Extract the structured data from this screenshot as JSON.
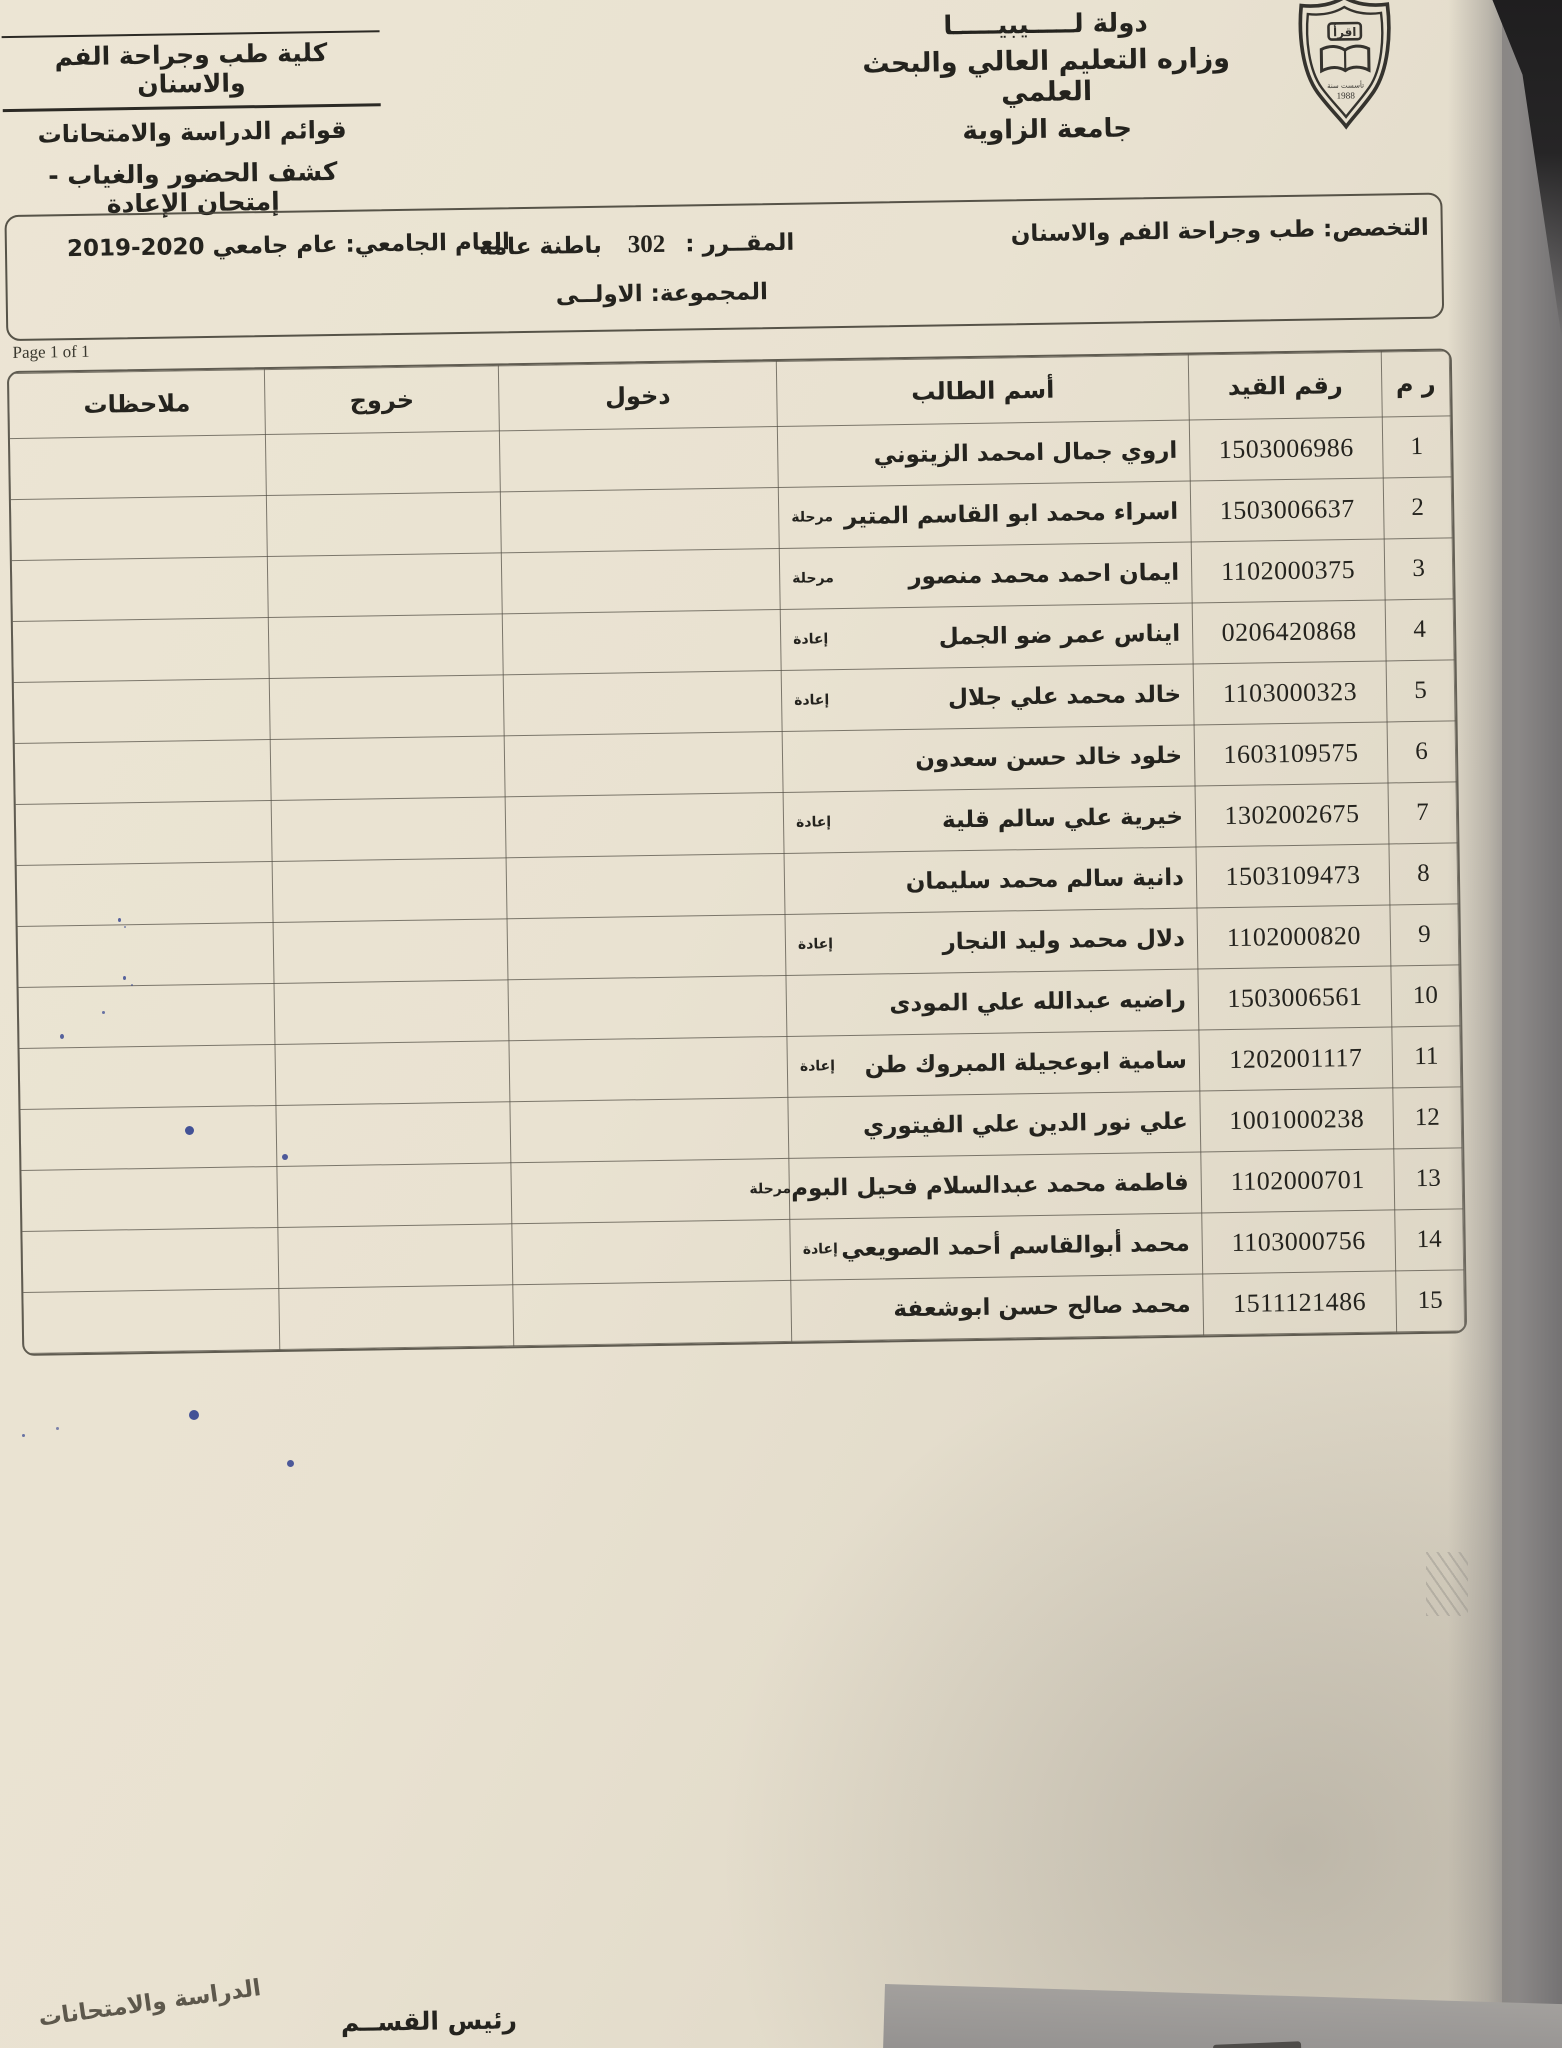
{
  "colors": {
    "bg": "#737172",
    "paper": "#e9e2d1",
    "ink": "#24231e",
    "line": "#56534a",
    "blue": "#31418f"
  },
  "header": {
    "ministry": {
      "state_line": "دولة لـــــيبيـــــا",
      "ministry_line": "وزاره التعليم العالي والبحث العلمي",
      "university_line": "جامعة الزاوية"
    },
    "logo": {
      "motto": "اقرأ",
      "founded_label": "تأسست سنة",
      "founded_year": "1988"
    },
    "faculty": {
      "faculty_line": "كلية طب وجراحة الفم والاسنان",
      "lists_line": "قوائم الدراسة والامتحانات",
      "sheet_line": "كشف الحضور والغياب - إمتحان الإعادة"
    }
  },
  "info_box": {
    "specialization": "التخصص: طب وجراحة الفم والاسنان",
    "course_label": "المقــرر :",
    "course_code": "302",
    "course_name": "باطنة عامة",
    "year_label": "العام الجامعي:",
    "year_value": "عام جامعي 2020-2019",
    "group": "المجموعة: الاولــى"
  },
  "page_indicator": "Page 1 of 1",
  "table": {
    "headers": {
      "no": "ر م",
      "id": "رقم القيد",
      "name": "أسم الطالب",
      "entry": "دخول",
      "exit": "خروج",
      "notes": "ملاحظات"
    },
    "rows": [
      {
        "no": "1",
        "id": "1503006986",
        "name": "اروي جمال امحمد الزيتوني",
        "tag": ""
      },
      {
        "no": "2",
        "id": "1503006637",
        "name": "اسراء محمد ابو القاسم المتير",
        "tag": "مرحلة"
      },
      {
        "no": "3",
        "id": "1102000375",
        "name": "ايمان احمد محمد منصور",
        "tag": "مرحلة"
      },
      {
        "no": "4",
        "id": "0206420868",
        "name": "ايناس عمر ضو الجمل",
        "tag": "إعادة"
      },
      {
        "no": "5",
        "id": "1103000323",
        "name": "خالد محمد علي جلال",
        "tag": "إعادة"
      },
      {
        "no": "6",
        "id": "1603109575",
        "name": "خلود خالد حسن سعدون",
        "tag": ""
      },
      {
        "no": "7",
        "id": "1302002675",
        "name": "خيرية علي سالم قلية",
        "tag": "إعادة"
      },
      {
        "no": "8",
        "id": "1503109473",
        "name": "دانية سالم محمد سليمان",
        "tag": ""
      },
      {
        "no": "9",
        "id": "1102000820",
        "name": "دلال محمد وليد النجار",
        "tag": "إعادة"
      },
      {
        "no": "10",
        "id": "1503006561",
        "name": "راضيه عبدالله علي المودى",
        "tag": ""
      },
      {
        "no": "11",
        "id": "1202001117",
        "name": "سامية ابوعجيلة المبروك طن",
        "tag": "إعادة"
      },
      {
        "no": "12",
        "id": "1001000238",
        "name": "علي نور الدين علي الفيتوري",
        "tag": ""
      },
      {
        "no": "13",
        "id": "1102000701",
        "name": "فاطمة محمد عبدالسلام فحيل البوم",
        "tag": "مرحلة"
      },
      {
        "no": "14",
        "id": "1103000756",
        "name": "محمد أبوالقاسم أحمد الصويعي",
        "tag": "إعادة"
      },
      {
        "no": "15",
        "id": "1511121486",
        "name": "محمد صالح حسن ابوشعفة",
        "tag": ""
      }
    ]
  },
  "footer": {
    "dept_head": "رئيس القســم",
    "exams_office": "الدراسة والامتحانات"
  }
}
